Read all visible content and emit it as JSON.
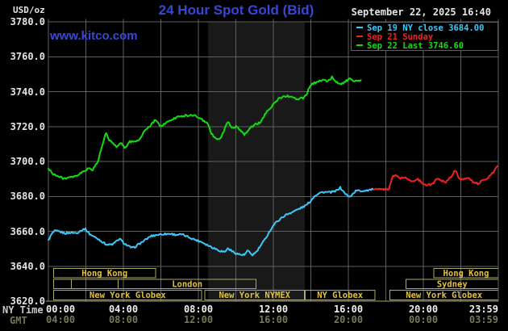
{
  "header": {
    "unit_label": "USD/oz",
    "title": "24 Hour Spot Gold (Bid)",
    "watermark": "www.kitco.com",
    "datetime": "September 22, 2025 16:40"
  },
  "legend": {
    "items": [
      {
        "label": "Sep 19 NY close 3684.00",
        "color": "#3cc8fa"
      },
      {
        "label": "Sep 21 Sunday",
        "color": "#f42020"
      },
      {
        "label": "Sep 22 Last 3746.60",
        "color": "#12dd12"
      }
    ]
  },
  "axes": {
    "y_ticks": [
      "3780.0",
      "3760.0",
      "3740.0",
      "3720.0",
      "3700.0",
      "3680.0",
      "3660.0",
      "3640.0",
      "3620.0"
    ],
    "x_tick_hours": [
      0,
      4,
      8,
      12,
      16,
      20,
      24
    ],
    "x_rows": [
      {
        "name": "NY Time",
        "labels": [
          "00:00",
          "04:00",
          "08:00",
          "12:00",
          "16:00",
          "20:00",
          "23:59"
        ]
      },
      {
        "name": "GMT",
        "labels": [
          "04:00",
          "08:00",
          "12:00",
          "16:00",
          "20:00",
          "00:00",
          "03:59"
        ]
      }
    ]
  },
  "sessions": {
    "rows": [
      [
        {
          "label": "Hong Kong",
          "start": 0.29,
          "end": 5.71
        },
        {
          "label": "Hong Kong",
          "start": 20.56,
          "end": 24
        }
      ],
      [
        {
          "label": "",
          "start": 0.29,
          "end": 1.22
        },
        {
          "label": "",
          "start": 1.22,
          "end": 3.73
        },
        {
          "label": "London",
          "start": 3.73,
          "end": 11.08
        },
        {
          "label": "Sydney",
          "start": 19.07,
          "end": 24
        }
      ],
      [
        {
          "label": "New York Globex",
          "start": 0.29,
          "end": 8.17
        },
        {
          "label": "New York NYMEX",
          "start": 8.34,
          "end": 13.66
        },
        {
          "label": "NY Globex",
          "start": 13.69,
          "end": 17.42
        },
        {
          "label": "New York Globex",
          "start": 18.21,
          "end": 24
        }
      ]
    ]
  },
  "chart_data": {
    "type": "line",
    "title": "24 Hour Spot Gold (Bid)",
    "xlabel": "NY Time (hours 00:00-23:59)",
    "ylabel": "USD/oz",
    "ylim": [
      3620,
      3780
    ],
    "y_grid_step": 20,
    "x_grid_step_hours": 2,
    "grid": true,
    "legend_position": "top-right",
    "nymex_band_hours": [
      8.52,
      13.68
    ],
    "series": [
      {
        "name": "Sep 19 NY close",
        "color": "#3cc8fa",
        "close_value": 3684.0,
        "points": [
          [
            0,
            3655
          ],
          [
            0.2,
            3658.8
          ],
          [
            0.35,
            3660.2
          ],
          [
            0.6,
            3659.8
          ],
          [
            0.9,
            3658.8
          ],
          [
            1.2,
            3659.3
          ],
          [
            1.5,
            3659
          ],
          [
            1.75,
            3660.5
          ],
          [
            1.95,
            3661.5
          ],
          [
            2.2,
            3658.5
          ],
          [
            2.5,
            3656.5
          ],
          [
            2.7,
            3655.3
          ],
          [
            3,
            3653
          ],
          [
            3.2,
            3652.2
          ],
          [
            3.44,
            3652.6
          ],
          [
            3.6,
            3654
          ],
          [
            3.8,
            3655.7
          ],
          [
            4,
            3653.5
          ],
          [
            4.25,
            3651.5
          ],
          [
            4.52,
            3650.3
          ],
          [
            4.8,
            3652.5
          ],
          [
            5.1,
            3654.5
          ],
          [
            5.45,
            3657.2
          ],
          [
            5.8,
            3658
          ],
          [
            6.1,
            3658.4
          ],
          [
            6.52,
            3658.6
          ],
          [
            6.8,
            3658
          ],
          [
            7.1,
            3658.2
          ],
          [
            7.45,
            3656.8
          ],
          [
            7.87,
            3655
          ],
          [
            8.2,
            3653.8
          ],
          [
            8.6,
            3651.5
          ],
          [
            9.16,
            3648.8
          ],
          [
            9.4,
            3648.2
          ],
          [
            9.59,
            3650.3
          ],
          [
            9.8,
            3648.5
          ],
          [
            10.05,
            3647.2
          ],
          [
            10.25,
            3646.6
          ],
          [
            10.45,
            3646.4
          ],
          [
            10.62,
            3648.8
          ],
          [
            10.88,
            3646.4
          ],
          [
            11.1,
            3648.2
          ],
          [
            11.53,
            3655
          ],
          [
            11.8,
            3660
          ],
          [
            12.04,
            3664
          ],
          [
            12.3,
            3666.5
          ],
          [
            12.6,
            3669
          ],
          [
            12.9,
            3670.5
          ],
          [
            13.2,
            3672
          ],
          [
            13.5,
            3673.5
          ],
          [
            13.76,
            3675
          ],
          [
            14,
            3677.5
          ],
          [
            14.2,
            3680.3
          ],
          [
            14.45,
            3682
          ],
          [
            14.7,
            3682.5
          ],
          [
            15,
            3682.3
          ],
          [
            15.3,
            3682.8
          ],
          [
            15.56,
            3685
          ],
          [
            15.8,
            3682
          ],
          [
            16.04,
            3679.5
          ],
          [
            16.25,
            3681.5
          ],
          [
            16.42,
            3683.4
          ],
          [
            16.7,
            3683
          ],
          [
            17,
            3683.6
          ],
          [
            17.35,
            3684
          ]
        ]
      },
      {
        "name": "Sep 21 Sunday",
        "color": "#f42020",
        "points": [
          [
            17.35,
            3684
          ],
          [
            18.15,
            3684
          ],
          [
            18.35,
            3691.2
          ],
          [
            18.55,
            3692
          ],
          [
            18.75,
            3690.5
          ],
          [
            19,
            3690.8
          ],
          [
            19.25,
            3689.3
          ],
          [
            19.5,
            3688.8
          ],
          [
            19.7,
            3689.8
          ],
          [
            20.1,
            3686.5
          ],
          [
            20.45,
            3686.8
          ],
          [
            20.75,
            3690.4
          ],
          [
            21,
            3689
          ],
          [
            21.2,
            3688.3
          ],
          [
            21.45,
            3691
          ],
          [
            21.7,
            3695
          ],
          [
            21.9,
            3690.5
          ],
          [
            22.15,
            3689.5
          ],
          [
            22.4,
            3691
          ],
          [
            22.65,
            3688.5
          ],
          [
            22.9,
            3687.2
          ],
          [
            23.15,
            3689
          ],
          [
            23.5,
            3691.2
          ],
          [
            23.75,
            3694
          ],
          [
            23.93,
            3697.5
          ],
          [
            24,
            3696.7
          ]
        ]
      },
      {
        "name": "Sep 22 Last",
        "color": "#12dd12",
        "last_value": 3746.6,
        "points": [
          [
            0,
            3695.8
          ],
          [
            0.25,
            3693
          ],
          [
            0.5,
            3691.5
          ],
          [
            0.8,
            3690.3
          ],
          [
            1.1,
            3690.6
          ],
          [
            1.4,
            3691.2
          ],
          [
            1.7,
            3693
          ],
          [
            1.95,
            3694.8
          ],
          [
            2.2,
            3696.3
          ],
          [
            2.35,
            3695
          ],
          [
            2.5,
            3697.3
          ],
          [
            2.62,
            3699.5
          ],
          [
            2.85,
            3708
          ],
          [
            3.06,
            3716.5
          ],
          [
            3.2,
            3713
          ],
          [
            3.45,
            3710
          ],
          [
            3.65,
            3708.5
          ],
          [
            3.85,
            3711
          ],
          [
            4.1,
            3707.7
          ],
          [
            4.35,
            3711.3
          ],
          [
            4.6,
            3711.6
          ],
          [
            4.85,
            3712.3
          ],
          [
            5.1,
            3717
          ],
          [
            5.45,
            3720.5
          ],
          [
            5.7,
            3723.8
          ],
          [
            6,
            3720.2
          ],
          [
            6.35,
            3722.5
          ],
          [
            6.6,
            3724
          ],
          [
            6.95,
            3725.8
          ],
          [
            7.3,
            3726.3
          ],
          [
            7.7,
            3726.5
          ],
          [
            8,
            3725.5
          ],
          [
            8.25,
            3723.5
          ],
          [
            8.5,
            3721.4
          ],
          [
            8.68,
            3716.5
          ],
          [
            8.85,
            3713.5
          ],
          [
            9.05,
            3712.5
          ],
          [
            9.25,
            3714.5
          ],
          [
            9.5,
            3721
          ],
          [
            9.62,
            3722.6
          ],
          [
            9.8,
            3719
          ],
          [
            10,
            3720.3
          ],
          [
            10.2,
            3717.8
          ],
          [
            10.45,
            3715.6
          ],
          [
            10.7,
            3718.5
          ],
          [
            11,
            3721.1
          ],
          [
            11.3,
            3722.3
          ],
          [
            11.6,
            3728
          ],
          [
            11.9,
            3731.5
          ],
          [
            12.1,
            3734
          ],
          [
            12.35,
            3736.5
          ],
          [
            12.7,
            3737.5
          ],
          [
            13,
            3736.8
          ],
          [
            13.3,
            3735.8
          ],
          [
            13.6,
            3736.5
          ],
          [
            13.75,
            3738
          ],
          [
            13.9,
            3741.8
          ],
          [
            14.05,
            3744.1
          ],
          [
            14.3,
            3745.5
          ],
          [
            14.6,
            3746.8
          ],
          [
            14.9,
            3746
          ],
          [
            15.13,
            3748.3
          ],
          [
            15.4,
            3745.3
          ],
          [
            15.63,
            3744.2
          ],
          [
            15.9,
            3746.3
          ],
          [
            16.06,
            3747.3
          ],
          [
            16.28,
            3745.6
          ],
          [
            16.45,
            3746
          ],
          [
            16.67,
            3746.6
          ]
        ]
      }
    ]
  },
  "colors": {
    "background": "#000000",
    "band": "#191919",
    "grid": "#5f5f5f",
    "title_blue": "#3847d8",
    "text": "#e4e4e4",
    "gmt_text": "#77775a",
    "session_border": "#a8a860",
    "session_text": "#e2c23c"
  }
}
